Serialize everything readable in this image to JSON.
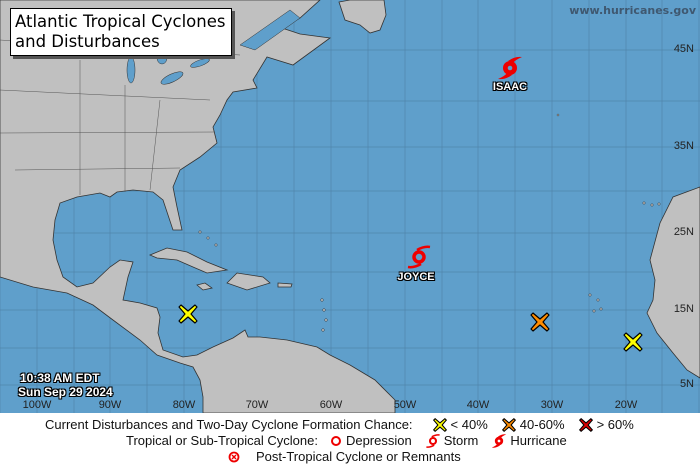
{
  "title": {
    "line1": "Atlantic Tropical Cyclones",
    "line2": "and Disturbances"
  },
  "website": "www.hurricanes.gov",
  "timestamp": {
    "time": "10:38 AM EDT",
    "date": "Sun Sep 29 2024"
  },
  "latitude_labels": [
    "45N",
    "35N",
    "25N",
    "15N",
    "5N"
  ],
  "longitude_labels": [
    "100W",
    "90W",
    "80W",
    "70W",
    "60W",
    "50W",
    "40W",
    "30W",
    "20W"
  ],
  "storms": [
    {
      "name": "ISAAC",
      "type": "hurricane",
      "icon": "hurricane-icon",
      "color": "#ee0000"
    },
    {
      "name": "JOYCE",
      "type": "storm",
      "icon": "storm-icon",
      "color": "#ee0000"
    }
  ],
  "disturbances": [
    {
      "chance": "< 40%",
      "color": "#ffff00",
      "location": "Western Caribbean"
    },
    {
      "chance": "40-60%",
      "color": "#ff8c00",
      "location": "Central Tropical Atlantic"
    },
    {
      "chance": "< 40%",
      "color": "#ffff00",
      "location": "Eastern Tropical Atlantic"
    }
  ],
  "legend": {
    "row1_label": "Current Disturbances and Two-Day Cyclone Formation Chance:",
    "low": "< 40%",
    "medium": "40-60%",
    "high": "> 60%",
    "low_color": "#ffff00",
    "medium_color": "#ff8c00",
    "high_color": "#dd0000",
    "row2_label": "Tropical or Sub-Tropical Cyclone:",
    "depression": "Depression",
    "storm": "Storm",
    "hurricane": "Hurricane",
    "row3_label": "Post-Tropical Cyclone or Remnants"
  },
  "colors": {
    "ocean": "#5f9fcb",
    "land": "#c0c0c0",
    "cyclone": "#ee0000"
  }
}
